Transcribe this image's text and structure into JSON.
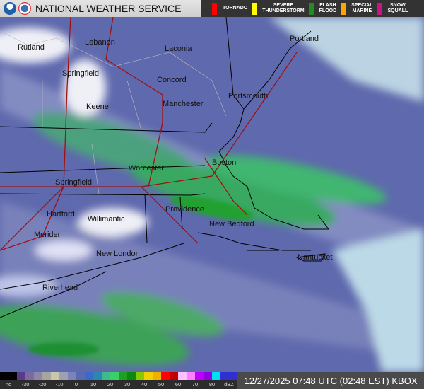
{
  "header": {
    "title": "NATIONAL WEATHER SERVICE",
    "logos": [
      "NOAA",
      "NWS"
    ]
  },
  "warnings": [
    {
      "label": "TORNADO",
      "color": "#ff0000"
    },
    {
      "label": "SEVERE THUNDERSTORM",
      "color": "#ffff00"
    },
    {
      "label": "FLASH FLOOD",
      "color": "#228b22"
    },
    {
      "label": "SPECIAL MARINE",
      "color": "#ffa500"
    },
    {
      "label": "SNOW SQUALL",
      "color": "#c71585"
    }
  ],
  "cities": [
    "Rutland",
    "Lebanon",
    "Laconia",
    "Portland",
    "Springfield",
    "Concord",
    "Portsmouth",
    "Keene",
    "Manchester",
    "Worcester",
    "Boston",
    "Springfield",
    "Providence",
    "Hartford",
    "Willimantic",
    "New Bedford",
    "Meriden",
    "New London",
    "Nantucket",
    "Riverhead"
  ],
  "scale": {
    "ticks": [
      "nd",
      "-30",
      "-20",
      "-10",
      "0",
      "10",
      "20",
      "30",
      "40",
      "50",
      "60",
      "70",
      "80",
      "dBZ"
    ],
    "colors": [
      "#000000",
      "#000000",
      "#5a3a8a",
      "#7a6aa0",
      "#8c86a8",
      "#a8a4a0",
      "#c8c8a8",
      "#9ea0b8",
      "#7a84b8",
      "#5a6ab0",
      "#3a6ac8",
      "#2a88b0",
      "#40b890",
      "#38d068",
      "#20a020",
      "#0a8a0a",
      "#8ac800",
      "#f0d000",
      "#f0b000",
      "#ff0000",
      "#c00000",
      "#ffc0ff",
      "#ff80ff",
      "#c000ff",
      "#9000e0",
      "#00e0f0",
      "#3030d0",
      "#3030d0"
    ]
  },
  "timestamp": "12/27/2025 07:48 UTC (02:48 EST) KBOX"
}
